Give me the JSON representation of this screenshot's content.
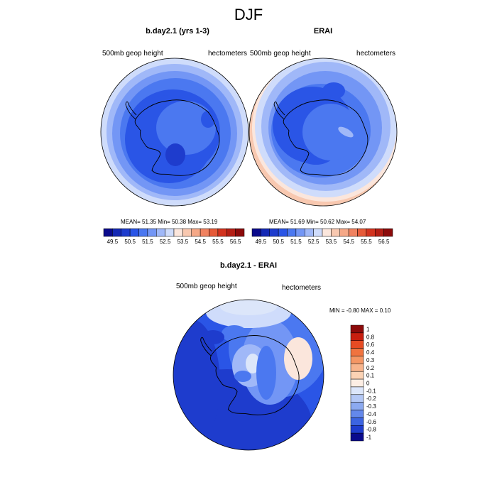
{
  "figure": {
    "title": "DJF"
  },
  "panels": {
    "left": {
      "title": "b.day2.1 (yrs 1-3)",
      "left_label": "500mb geop height",
      "right_label": "hectometers",
      "stats": "MEAN=  51.35  Min=  50.38  Max=  53.19"
    },
    "right": {
      "title": "ERAI",
      "left_label": "500mb geop height",
      "right_label": "hectometers",
      "stats": "MEAN=  51.69  Min=  50.62  Max=  54.07"
    },
    "diff": {
      "title": "b.day2.1 - ERAI",
      "left_label": "500mb geop height",
      "right_label": "hectometers",
      "stats": "MIN =  -0.80 MAX =   0.10"
    }
  },
  "colorbars": {
    "abs": {
      "labels": [
        "49.5",
        "50.5",
        "51.5",
        "52.5",
        "53.5",
        "54.5",
        "55.5",
        "56.5"
      ],
      "colors": [
        "#0a0a8c",
        "#1428b4",
        "#1e3ccd",
        "#2a55e6",
        "#4b78f0",
        "#7396f5",
        "#a0b8f8",
        "#cfdcfb",
        "#fbe6dc",
        "#f8c8b0",
        "#f5a887",
        "#f08260",
        "#e65a38",
        "#d2321e",
        "#b41e14",
        "#8c0a0a"
      ]
    },
    "diff": {
      "labels": [
        "1",
        "0.8",
        "0.6",
        "0.4",
        "0.3",
        "0.2",
        "0.1",
        "0",
        "-0.1",
        "-0.2",
        "-0.3",
        "-0.4",
        "-0.6",
        "-0.8",
        "-1"
      ],
      "colors": [
        "#8c0a0a",
        "#c81e0f",
        "#e64b23",
        "#f0733f",
        "#f59664",
        "#f8b48c",
        "#fbd2b4",
        "#fdeee4",
        "#dce6fa",
        "#b4c8f5",
        "#8caaf0",
        "#6488eb",
        "#3c64e1",
        "#1e3ccd",
        "#0a0a8c"
      ]
    }
  },
  "map": {
    "ocean_fill": "#1e3ccd",
    "region_colors": [
      "#2a55e6",
      "#4b78f0",
      "#7396f5",
      "#a0b8f8",
      "#cfdcfb",
      "#fbe6dc",
      "#f8c8b0"
    ]
  }
}
